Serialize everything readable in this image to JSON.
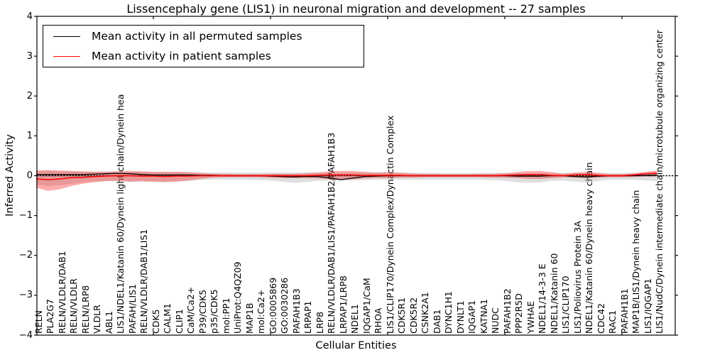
{
  "title": "Lissencephaly gene (LIS1) in neuronal migration and development -- 27 samples",
  "axes": {
    "ylabel": "Inferred Activity",
    "xlabel": "Cellular Entities",
    "yticks": [
      {
        "label": "4",
        "value": 4
      },
      {
        "label": "3",
        "value": 3
      },
      {
        "label": "2",
        "value": 2
      },
      {
        "label": "1",
        "value": 1
      },
      {
        "label": "0",
        "value": 0
      },
      {
        "label": "−1",
        "value": -1
      },
      {
        "label": "−2",
        "value": -2
      },
      {
        "label": "−3",
        "value": -3
      },
      {
        "label": "−4",
        "value": -4
      }
    ]
  },
  "legend": {
    "items": [
      {
        "label": "Mean activity in all permuted samples",
        "color": "#000000"
      },
      {
        "label": "Mean activity in patient samples",
        "color": "#ff0000"
      }
    ]
  },
  "colors": {
    "permuted_line": "#000000",
    "patient_line": "#ff0000",
    "permuted_band": "#aaaaaa",
    "patient_band": "#ff0000",
    "zero_reference": "#000000"
  },
  "chart_data": {
    "type": "line",
    "title": "Lissencephaly gene (LIS1) in neuronal migration and development -- 27 samples",
    "xlabel": "Cellular Entities",
    "ylabel": "Inferred Activity",
    "ylim": [
      -4,
      4
    ],
    "grid": false,
    "legend_position": "upper left",
    "xtick_indices": [
      10,
      20,
      30,
      40,
      50
    ],
    "categories": [
      "RELN",
      "PLA2G7",
      "RELN/VLDLR/DAB1",
      "RELN/VLDLR",
      "RELN/LRP8",
      "VLDLR",
      "ABL1",
      "LIS1/NDEL1/Katanin 60/Dynein light chain/Dynein hea",
      "PAFAH/LIS1",
      "RELN/VLDLR/DAB1/LIS1",
      "CDK5",
      "CALM1",
      "CLIP1",
      "CaM/Ca2+",
      "P39/CDK5",
      "p35/CDK5",
      "mol:PP1",
      "UniProt:Q4QZ09",
      "MAP1B",
      "mol:Ca2+",
      "GO:0005869",
      "GO:0030286",
      "PAFAH1B3",
      "LRPAP1",
      "LRP8",
      "RELN/VLDLR/DAB1/LIS1/PAFAH1B2/PAFAH1B3",
      "LRPAP1/LRP8",
      "NDEL1",
      "IQGAP1/CaM",
      "RHOA",
      "LIS1/CLIP170/Dynein Complex/Dynactin Complex",
      "CDK5R1",
      "CDK5R2",
      "CSNK2A1",
      "DAB1",
      "DYNC1H1",
      "DYNLT1",
      "IQGAP1",
      "KATNA1",
      "NUDC",
      "PAFAH1B2",
      "PPP2R5D",
      "YWHAE",
      "NDEL1/14-3-3 E",
      "NDEL1/Katanin 60",
      "LIS1/CLIP170",
      "LIS1/Poliovirus Protein 3A",
      "NDEL1/Katanin 60/Dynein heavy chain",
      "CDC42",
      "RAC1",
      "PAFAH1B1",
      "MAP1B/LIS1/Dynein heavy chain",
      "LIS1/IQGAP1",
      "LIS1/NudC/Dynein intermediate chain/microtubule organizing center"
    ],
    "series": [
      {
        "name": "Mean activity in all permuted samples",
        "role": "line",
        "color": "#000000",
        "values": [
          0.03,
          0.03,
          0.03,
          0.03,
          0.03,
          0.04,
          0.05,
          0.06,
          0.05,
          0.03,
          0.02,
          0.02,
          0.02,
          0.02,
          0.01,
          0.01,
          0,
          0,
          0,
          0,
          -0.01,
          -0.02,
          -0.03,
          -0.02,
          -0.02,
          -0.05,
          -0.1,
          -0.06,
          -0.02,
          -0.01,
          0,
          0,
          0,
          0,
          0,
          0,
          0,
          0,
          0,
          0,
          0,
          -0.01,
          -0.01,
          -0.01,
          0,
          0,
          -0.02,
          -0.03,
          -0.01,
          0,
          0,
          0,
          0.01,
          0.02
        ]
      },
      {
        "name": "Mean activity in patient samples",
        "role": "line",
        "color": "#ff0000",
        "values": [
          -0.08,
          -0.1,
          -0.08,
          -0.05,
          -0.04,
          -0.02,
          -0.01,
          0,
          0,
          -0.01,
          -0.01,
          -0.02,
          -0.01,
          -0.01,
          0,
          0,
          0,
          0,
          0,
          0,
          0,
          0,
          0,
          0,
          0.01,
          0.02,
          0.02,
          0.02,
          0.01,
          0.01,
          0.01,
          0.01,
          0,
          0,
          0,
          0,
          0,
          0,
          0,
          0,
          0.01,
          0.02,
          0.03,
          0.03,
          0.01,
          0,
          0.02,
          0.03,
          0.01,
          0,
          0,
          0.02,
          0.05,
          0.07
        ]
      },
      {
        "name": "Permuted samples band upper",
        "role": "band-upper",
        "band": "permuted",
        "values": [
          0.12,
          0.13,
          0.12,
          0.11,
          0.1,
          0.1,
          0.1,
          0.11,
          0.1,
          0.1,
          0.09,
          0.09,
          0.09,
          0.09,
          0.08,
          0.08,
          0.08,
          0.08,
          0.08,
          0.08,
          0.08,
          0.08,
          0.08,
          0.08,
          0.08,
          0.08,
          0.08,
          0.08,
          0.08,
          0.08,
          0.08,
          0.07,
          0.07,
          0.07,
          0.07,
          0.07,
          0.07,
          0.07,
          0.07,
          0.07,
          0.07,
          0.07,
          0.07,
          0.07,
          0.07,
          0.07,
          0.07,
          0.07,
          0.07,
          0.07,
          0.07,
          0.07,
          0.07,
          0.08
        ]
      },
      {
        "name": "Permuted samples band lower",
        "role": "band-lower",
        "band": "permuted",
        "values": [
          -0.22,
          -0.26,
          -0.24,
          -0.2,
          -0.17,
          -0.15,
          -0.14,
          -0.14,
          -0.15,
          -0.14,
          -0.15,
          -0.15,
          -0.14,
          -0.13,
          -0.11,
          -0.1,
          -0.1,
          -0.1,
          -0.1,
          -0.11,
          -0.12,
          -0.15,
          -0.18,
          -0.16,
          -0.13,
          -0.12,
          -0.12,
          -0.12,
          -0.11,
          -0.1,
          -0.1,
          -0.1,
          -0.1,
          -0.1,
          -0.1,
          -0.1,
          -0.1,
          -0.1,
          -0.1,
          -0.11,
          -0.13,
          -0.16,
          -0.18,
          -0.17,
          -0.13,
          -0.12,
          -0.15,
          -0.17,
          -0.13,
          -0.1,
          -0.1,
          -0.1,
          -0.12,
          -0.14
        ]
      },
      {
        "name": "Patient samples band upper",
        "role": "band-upper",
        "band": "patient",
        "values": [
          0.13,
          0.14,
          0.13,
          0.12,
          0.11,
          0.1,
          0.1,
          0.11,
          0.12,
          0.11,
          0.1,
          0.1,
          0.1,
          0.09,
          0.07,
          0.05,
          0.05,
          0.04,
          0.04,
          0.04,
          0.05,
          0.05,
          0.05,
          0.06,
          0.08,
          0.11,
          0.12,
          0.12,
          0.1,
          0.08,
          0.09,
          0.08,
          0.06,
          0.05,
          0.05,
          0.04,
          0.04,
          0.04,
          0.05,
          0.05,
          0.06,
          0.09,
          0.12,
          0.12,
          0.09,
          0.05,
          0.08,
          0.1,
          0.07,
          0.04,
          0.04,
          0.06,
          0.1,
          0.13
        ]
      },
      {
        "name": "Patient samples band lower",
        "role": "band-lower",
        "band": "patient",
        "values": [
          -0.3,
          -0.38,
          -0.34,
          -0.26,
          -0.2,
          -0.16,
          -0.13,
          -0.13,
          -0.15,
          -0.14,
          -0.15,
          -0.16,
          -0.15,
          -0.12,
          -0.08,
          -0.05,
          -0.04,
          -0.04,
          -0.04,
          -0.04,
          -0.05,
          -0.06,
          -0.06,
          -0.06,
          -0.07,
          -0.09,
          -0.1,
          -0.09,
          -0.07,
          -0.06,
          -0.06,
          -0.05,
          -0.05,
          -0.04,
          -0.04,
          -0.04,
          -0.04,
          -0.04,
          -0.04,
          -0.05,
          -0.05,
          -0.06,
          -0.08,
          -0.08,
          -0.06,
          -0.04,
          -0.05,
          -0.06,
          -0.05,
          -0.04,
          -0.04,
          -0.03,
          -0.02,
          -0.02
        ]
      }
    ],
    "zero_reference_line": {
      "style": "dotted",
      "value": 0,
      "color": "#000000"
    }
  }
}
